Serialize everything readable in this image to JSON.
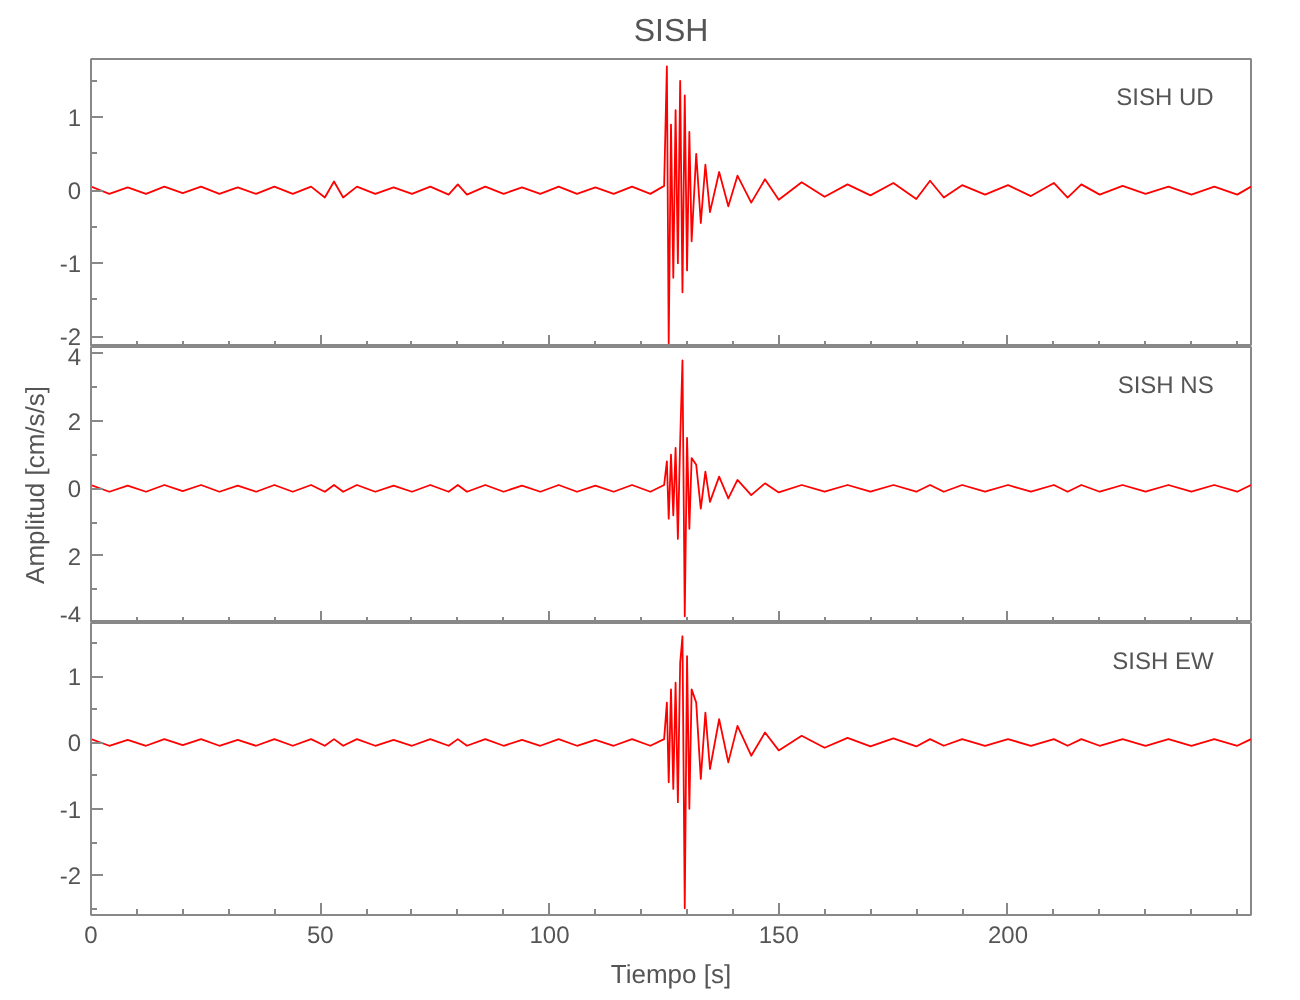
{
  "chart_data": [
    {
      "type": "line",
      "title": "SISH",
      "annotations": [
        "SISH   UD"
      ],
      "tick_labels": "y",
      "xlim": [
        0,
        253
      ],
      "xticks": [
        0,
        50,
        100,
        150,
        200
      ],
      "ylim": [
        -2.15,
        1.8
      ],
      "yticks": [
        -2,
        -1,
        0,
        1
      ],
      "x": [
        0,
        4,
        8,
        12,
        16,
        20,
        24,
        28,
        32,
        36,
        40,
        44,
        48,
        51,
        53,
        55,
        58,
        62,
        66,
        70,
        74,
        78,
        80,
        82,
        86,
        90,
        94,
        98,
        102,
        106,
        110,
        114,
        118,
        122,
        125,
        125.6,
        126,
        126.5,
        127,
        127.5,
        128,
        128.5,
        129,
        129.5,
        130,
        130.5,
        131,
        132,
        133,
        134,
        135,
        137,
        139,
        141,
        144,
        147,
        150,
        155,
        160,
        165,
        170,
        175,
        180,
        183,
        186,
        190,
        195,
        200,
        205,
        210,
        213,
        216,
        220,
        225,
        230,
        235,
        240,
        245,
        250,
        253
      ],
      "series": [
        {
          "color": "#ff0000",
          "values": [
            0.05,
            -0.05,
            0.04,
            -0.05,
            0.05,
            -0.04,
            0.05,
            -0.05,
            0.04,
            -0.05,
            0.05,
            -0.05,
            0.05,
            -0.1,
            0.12,
            -0.1,
            0.05,
            -0.05,
            0.04,
            -0.05,
            0.05,
            -0.06,
            0.08,
            -0.06,
            0.05,
            -0.05,
            0.04,
            -0.05,
            0.05,
            -0.05,
            0.04,
            -0.05,
            0.05,
            -0.05,
            0.06,
            1.7,
            -2.1,
            0.9,
            -1.2,
            1.1,
            -1.0,
            1.5,
            -1.4,
            1.3,
            -1.1,
            0.8,
            -0.7,
            0.5,
            -0.45,
            0.35,
            -0.3,
            0.25,
            -0.22,
            0.2,
            -0.17,
            0.15,
            -0.13,
            0.11,
            -0.09,
            0.08,
            -0.07,
            0.1,
            -0.12,
            0.13,
            -0.1,
            0.07,
            -0.06,
            0.07,
            -0.08,
            0.1,
            -0.1,
            0.08,
            -0.06,
            0.06,
            -0.05,
            0.05,
            -0.06,
            0.05,
            -0.06,
            0.05
          ]
        }
      ]
    },
    {
      "type": "line",
      "ylabel": "Amplitud [cm/s/s]",
      "annotations": [
        "SISH   NS"
      ],
      "tick_labels": "y",
      "xlim": [
        0,
        253
      ],
      "xticks": [
        0,
        50,
        100,
        150,
        200
      ],
      "ylim": [
        -4,
        4.2
      ],
      "yticks": [
        -4,
        {
          "value": -2,
          "label": "2"
        },
        0,
        2,
        4
      ],
      "x": [
        0,
        4,
        8,
        12,
        16,
        20,
        24,
        28,
        32,
        36,
        40,
        44,
        48,
        51,
        53,
        55,
        58,
        62,
        66,
        70,
        74,
        78,
        80,
        82,
        86,
        90,
        94,
        98,
        102,
        106,
        110,
        114,
        118,
        122,
        125,
        125.6,
        126,
        126.5,
        127,
        127.5,
        128,
        128.5,
        129,
        129.5,
        130,
        130.5,
        131,
        132,
        133,
        134,
        135,
        137,
        139,
        141,
        144,
        147,
        150,
        155,
        160,
        165,
        170,
        175,
        180,
        183,
        186,
        190,
        195,
        200,
        205,
        210,
        213,
        216,
        220,
        225,
        230,
        235,
        240,
        245,
        250,
        253
      ],
      "series": [
        {
          "color": "#ff0000",
          "values": [
            0.1,
            -0.1,
            0.08,
            -0.1,
            0.1,
            -0.08,
            0.1,
            -0.1,
            0.08,
            -0.1,
            0.1,
            -0.1,
            0.1,
            -0.1,
            0.1,
            -0.1,
            0.1,
            -0.1,
            0.08,
            -0.1,
            0.1,
            -0.1,
            0.1,
            -0.1,
            0.1,
            -0.1,
            0.08,
            -0.1,
            0.1,
            -0.1,
            0.08,
            -0.1,
            0.1,
            -0.1,
            0.1,
            0.8,
            -0.9,
            1.0,
            -0.8,
            1.2,
            -1.5,
            1.4,
            3.8,
            -3.8,
            1.5,
            -1.2,
            0.9,
            0.7,
            -0.6,
            0.5,
            -0.4,
            0.35,
            -0.3,
            0.25,
            -0.2,
            0.15,
            -0.12,
            0.1,
            -0.1,
            0.1,
            -0.1,
            0.1,
            -0.1,
            0.1,
            -0.1,
            0.1,
            -0.1,
            0.1,
            -0.1,
            0.1,
            -0.1,
            0.1,
            -0.1,
            0.1,
            -0.1,
            0.1,
            -0.1,
            0.1,
            -0.1,
            0.1
          ]
        }
      ]
    },
    {
      "type": "line",
      "xlabel": "Tiempo [s]",
      "annotations": [
        "SISH   EW"
      ],
      "xlim": [
        0,
        253
      ],
      "xticks": [
        0,
        50,
        100,
        150,
        200
      ],
      "ylim": [
        -2.6,
        1.8
      ],
      "yticks": [
        -2,
        -1,
        0,
        1
      ],
      "x": [
        0,
        4,
        8,
        12,
        16,
        20,
        24,
        28,
        32,
        36,
        40,
        44,
        48,
        51,
        53,
        55,
        58,
        62,
        66,
        70,
        74,
        78,
        80,
        82,
        86,
        90,
        94,
        98,
        102,
        106,
        110,
        114,
        118,
        122,
        125,
        125.6,
        126,
        126.5,
        127,
        127.5,
        128,
        128.5,
        129,
        129.5,
        130,
        130.5,
        131,
        132,
        133,
        134,
        135,
        137,
        139,
        141,
        144,
        147,
        150,
        155,
        160,
        165,
        170,
        175,
        180,
        183,
        186,
        190,
        195,
        200,
        205,
        210,
        213,
        216,
        220,
        225,
        230,
        235,
        240,
        245,
        250,
        253
      ],
      "series": [
        {
          "color": "#ff0000",
          "values": [
            0.05,
            -0.05,
            0.04,
            -0.05,
            0.05,
            -0.04,
            0.05,
            -0.05,
            0.04,
            -0.05,
            0.05,
            -0.05,
            0.05,
            -0.05,
            0.05,
            -0.05,
            0.05,
            -0.05,
            0.04,
            -0.05,
            0.05,
            -0.05,
            0.05,
            -0.05,
            0.05,
            -0.05,
            0.04,
            -0.05,
            0.05,
            -0.05,
            0.04,
            -0.05,
            0.05,
            -0.05,
            0.05,
            0.6,
            -0.6,
            0.8,
            -0.7,
            0.9,
            -0.9,
            1.2,
            1.6,
            -2.5,
            1.3,
            -1.0,
            0.8,
            0.6,
            -0.55,
            0.45,
            -0.4,
            0.35,
            -0.3,
            0.25,
            -0.2,
            0.15,
            -0.12,
            0.1,
            -0.08,
            0.07,
            -0.06,
            0.06,
            -0.06,
            0.05,
            -0.05,
            0.05,
            -0.05,
            0.05,
            -0.05,
            0.05,
            -0.05,
            0.05,
            -0.05,
            0.05,
            -0.05,
            0.05,
            -0.05,
            0.05,
            -0.05,
            0.05
          ]
        }
      ]
    }
  ]
}
